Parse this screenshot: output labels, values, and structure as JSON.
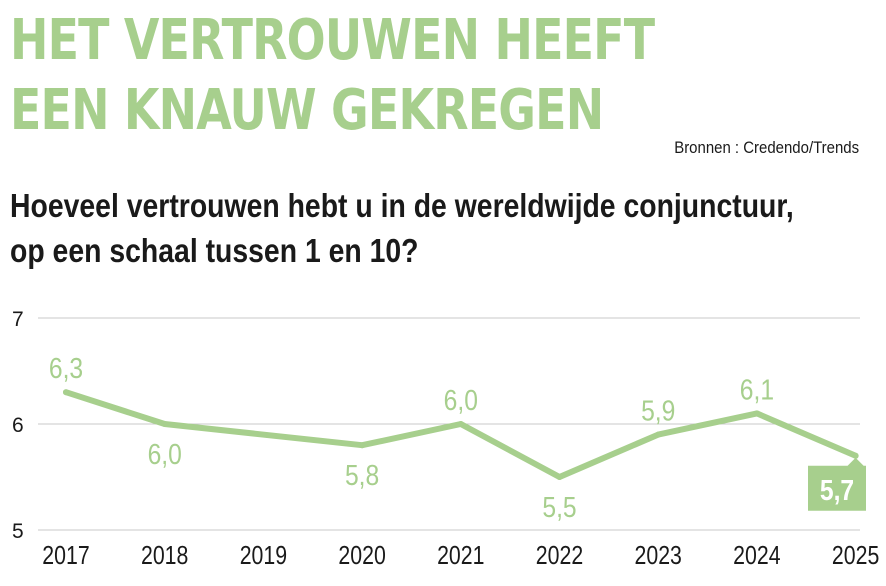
{
  "header": {
    "title_line1": "HET VERTROUWEN HEEFT",
    "title_line2": "EEN KNAUW GEKREGEN",
    "source": "Bronnen : Credendo/Trends",
    "subtitle_line1": "Hoeveel vertrouwen hebt u in de wereldwijde conjunctuur,",
    "subtitle_line2": "op een schaal tussen 1 en 10?"
  },
  "colors": {
    "accent": "#a7cf8d",
    "grid": "#c8c8c8",
    "text": "#1a1a1a"
  },
  "chart_data": {
    "type": "line",
    "title": "HET VERTROUWEN HEEFT EEN KNAUW GEKREGEN",
    "subtitle": "Hoeveel vertrouwen hebt u in de wereldwijde conjunctuur, op een schaal tussen 1 en 10?",
    "x": [
      "2017",
      "2018",
      "2019",
      "2020",
      "2021",
      "2022",
      "2023",
      "2024",
      "2025"
    ],
    "values": [
      6.3,
      6.0,
      null,
      5.8,
      6.0,
      5.5,
      5.9,
      6.1,
      5.7
    ],
    "labels": [
      "6,3",
      "6,0",
      "",
      "5,8",
      "6,0",
      "5,5",
      "5,9",
      "6,1",
      "5,7"
    ],
    "ylim": [
      5,
      7
    ],
    "yticks": [
      5,
      6,
      7
    ],
    "ytick_labels": [
      "5",
      "6",
      "7"
    ],
    "grid": true,
    "xlabel": "",
    "ylabel": ""
  }
}
